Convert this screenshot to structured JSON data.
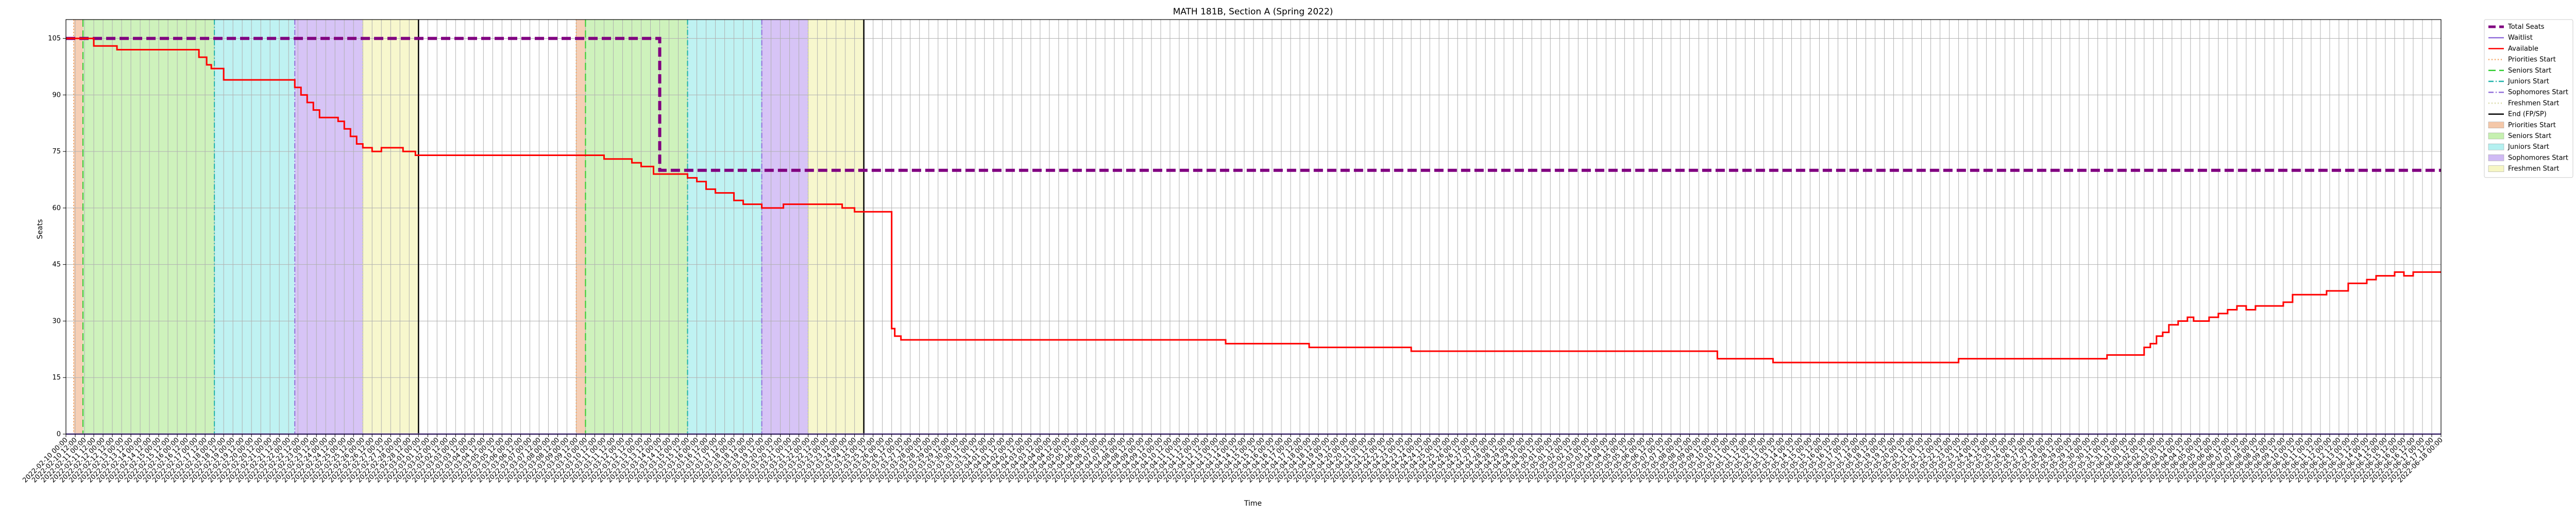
{
  "chart_data": {
    "type": "line",
    "title": "MATH 181B, Section A (Spring 2022)",
    "xlabel": "Time",
    "ylabel": "Seats",
    "ylim": [
      0,
      110
    ],
    "yticks": [
      0,
      15,
      30,
      45,
      60,
      75,
      90,
      105
    ],
    "x_start": "2022-02-10 00:00",
    "x_end": "2022-06-18 00:00",
    "xtick_step_hours": 12,
    "grid": true,
    "legend_position": "outside-right-top",
    "series": [
      {
        "name": "Total Seats",
        "color": "#800080",
        "style": "dashed",
        "points": [
          [
            "2022-02-10 00:00",
            105
          ],
          [
            "2022-03-14 00:00",
            105
          ],
          [
            "2022-03-14 00:00",
            70
          ],
          [
            "2022-06-18 00:00",
            70
          ]
        ]
      },
      {
        "name": "Waitlist",
        "color": "#9370db",
        "style": "solid",
        "points": [
          [
            "2022-02-10 00:00",
            0
          ],
          [
            "2022-06-18 00:00",
            0
          ]
        ]
      },
      {
        "name": "Available",
        "color": "#ff0000",
        "style": "step",
        "points": [
          [
            "2022-02-10 00:00",
            105
          ],
          [
            "2022-02-11 12:00",
            103
          ],
          [
            "2022-02-12 18:00",
            102
          ],
          [
            "2022-02-16 00:00",
            102
          ],
          [
            "2022-02-17 04:00",
            100
          ],
          [
            "2022-02-17 14:00",
            98
          ],
          [
            "2022-02-17 20:00",
            97
          ],
          [
            "2022-02-18 12:00",
            94
          ],
          [
            "2022-02-21 20:00",
            94
          ],
          [
            "2022-02-22 08:00",
            92
          ],
          [
            "2022-02-22 16:00",
            90
          ],
          [
            "2022-02-23 00:00",
            88
          ],
          [
            "2022-02-23 08:00",
            86
          ],
          [
            "2022-02-23 16:00",
            84
          ],
          [
            "2022-02-24 16:00",
            83
          ],
          [
            "2022-02-25 00:00",
            81
          ],
          [
            "2022-02-25 08:00",
            79
          ],
          [
            "2022-02-25 16:00",
            77
          ],
          [
            "2022-02-26 00:00",
            76
          ],
          [
            "2022-02-26 12:00",
            75
          ],
          [
            "2022-02-27 00:00",
            76
          ],
          [
            "2022-02-28 04:00",
            75
          ],
          [
            "2022-02-28 20:00",
            74
          ],
          [
            "2022-03-01 12:00",
            74
          ],
          [
            "2022-03-10 04:00",
            74
          ],
          [
            "2022-03-11 00:00",
            73
          ],
          [
            "2022-03-11 20:00",
            73
          ],
          [
            "2022-03-12 12:00",
            72
          ],
          [
            "2022-03-13 00:00",
            71
          ],
          [
            "2022-03-13 16:00",
            69
          ],
          [
            "2022-03-14 00:00",
            69
          ],
          [
            "2022-03-15 12:00",
            68
          ],
          [
            "2022-03-16 00:00",
            67
          ],
          [
            "2022-03-16 12:00",
            65
          ],
          [
            "2022-03-17 00:00",
            64
          ],
          [
            "2022-03-18 00:00",
            62
          ],
          [
            "2022-03-18 12:00",
            61
          ],
          [
            "2022-03-19 12:00",
            60
          ],
          [
            "2022-03-20 16:00",
            61
          ],
          [
            "2022-03-23 20:00",
            60
          ],
          [
            "2022-03-24 12:00",
            59
          ],
          [
            "2022-03-26 00:00",
            59
          ],
          [
            "2022-03-26 12:00",
            28
          ],
          [
            "2022-03-26 16:00",
            26
          ],
          [
            "2022-03-27 00:00",
            25
          ],
          [
            "2022-04-13 12:00",
            24
          ],
          [
            "2022-04-18 00:00",
            23
          ],
          [
            "2022-04-23 12:00",
            22
          ],
          [
            "2022-05-10 00:00",
            20
          ],
          [
            "2022-05-13 00:00",
            19
          ],
          [
            "2022-05-23 00:00",
            20
          ],
          [
            "2022-05-31 00:00",
            21
          ],
          [
            "2022-06-02 00:00",
            23
          ],
          [
            "2022-06-02 08:00",
            24
          ],
          [
            "2022-06-02 16:00",
            26
          ],
          [
            "2022-06-03 00:00",
            27
          ],
          [
            "2022-06-03 08:00",
            29
          ],
          [
            "2022-06-03 20:00",
            30
          ],
          [
            "2022-06-04 08:00",
            31
          ],
          [
            "2022-06-04 16:00",
            30
          ],
          [
            "2022-06-05 00:00",
            30
          ],
          [
            "2022-06-05 12:00",
            31
          ],
          [
            "2022-06-06 00:00",
            32
          ],
          [
            "2022-06-06 12:00",
            33
          ],
          [
            "2022-06-07 00:00",
            34
          ],
          [
            "2022-06-07 12:00",
            33
          ],
          [
            "2022-06-08 00:00",
            34
          ],
          [
            "2022-06-09 12:00",
            35
          ],
          [
            "2022-06-10 00:00",
            37
          ],
          [
            "2022-06-11 20:00",
            38
          ],
          [
            "2022-06-13 00:00",
            40
          ],
          [
            "2022-06-14 00:00",
            41
          ],
          [
            "2022-06-14 12:00",
            42
          ],
          [
            "2022-06-15 12:00",
            43
          ],
          [
            "2022-06-16 00:00",
            42
          ],
          [
            "2022-06-16 12:00",
            43
          ],
          [
            "2022-06-18 00:00",
            43
          ]
        ]
      }
    ],
    "vlines": [
      {
        "name": "Priorities Start",
        "color": "#f4a460",
        "style": "dotted",
        "x": "2022-02-10 10:00"
      },
      {
        "name": "Seniors Start",
        "color": "#32cd32",
        "style": "dashed",
        "x": "2022-02-10 22:00"
      },
      {
        "name": "Juniors Start",
        "color": "#20b2aa",
        "style": "dashdot",
        "x": "2022-02-18 00:00"
      },
      {
        "name": "Sophomores Start",
        "color": "#9370db",
        "style": "dashdot",
        "x": "2022-02-22 08:00"
      },
      {
        "name": "Freshmen Start",
        "color": "#d8d8a0",
        "style": "dotted",
        "x": "2022-02-26 00:00"
      },
      {
        "name": "End (FP/SP)",
        "color": "#000000",
        "style": "solid",
        "x": "2022-03-01 00:00"
      },
      {
        "name": "Priorities Start",
        "color": "#f4a460",
        "style": "dotted",
        "x": "2022-03-09 12:00"
      },
      {
        "name": "Seniors Start",
        "color": "#32cd32",
        "style": "dashed",
        "x": "2022-03-10 00:00"
      },
      {
        "name": "Juniors Start",
        "color": "#20b2aa",
        "style": "dashdot",
        "x": "2022-03-15 12:00"
      },
      {
        "name": "Sophomores Start",
        "color": "#9370db",
        "style": "dashdot",
        "x": "2022-03-19 12:00"
      },
      {
        "name": "Freshmen Start",
        "color": "#d8d8a0",
        "style": "dotted",
        "x": "2022-03-22 00:00"
      },
      {
        "name": "End (FP/SP)",
        "color": "#000000",
        "style": "solid",
        "x": "2022-03-25 00:00"
      }
    ],
    "spans": [
      {
        "name": "Priorities Start",
        "color": "#f4c7a8",
        "start": "2022-02-10 10:00",
        "end": "2022-02-10 22:00"
      },
      {
        "name": "Seniors Start",
        "color": "#c6f0b0",
        "start": "2022-02-10 22:00",
        "end": "2022-02-18 00:00"
      },
      {
        "name": "Juniors Start",
        "color": "#b4f0f0",
        "start": "2022-02-18 00:00",
        "end": "2022-02-22 08:00"
      },
      {
        "name": "Sophomores Start",
        "color": "#d0baf4",
        "start": "2022-02-22 08:00",
        "end": "2022-02-26 00:00"
      },
      {
        "name": "Freshmen Start",
        "color": "#f6f6c4",
        "start": "2022-02-26 00:00",
        "end": "2022-03-01 00:00"
      },
      {
        "name": "Priorities Start",
        "color": "#f4c7a8",
        "start": "2022-03-09 12:00",
        "end": "2022-03-10 00:00"
      },
      {
        "name": "Seniors Start",
        "color": "#c6f0b0",
        "start": "2022-03-10 00:00",
        "end": "2022-03-15 12:00"
      },
      {
        "name": "Juniors Start",
        "color": "#b4f0f0",
        "start": "2022-03-15 12:00",
        "end": "2022-03-19 12:00"
      },
      {
        "name": "Sophomores Start",
        "color": "#d0baf4",
        "start": "2022-03-19 12:00",
        "end": "2022-03-22 00:00"
      },
      {
        "name": "Freshmen Start",
        "color": "#f6f6c4",
        "start": "2022-03-22 00:00",
        "end": "2022-03-25 00:00"
      }
    ],
    "legend": [
      {
        "label": "Total Seats",
        "kind": "line",
        "color": "#800080",
        "style": "dashed"
      },
      {
        "label": "Waitlist",
        "kind": "line",
        "color": "#9370db",
        "style": "solid"
      },
      {
        "label": "Available",
        "kind": "line",
        "color": "#ff0000",
        "style": "solid"
      },
      {
        "label": "Priorities Start",
        "kind": "line",
        "color": "#f4a460",
        "style": "dotted"
      },
      {
        "label": "Seniors Start",
        "kind": "line",
        "color": "#32cd32",
        "style": "dashed"
      },
      {
        "label": "Juniors Start",
        "kind": "line",
        "color": "#20b2aa",
        "style": "dashdot"
      },
      {
        "label": "Sophomores Start",
        "kind": "line",
        "color": "#9370db",
        "style": "dashdot"
      },
      {
        "label": "Freshmen Start",
        "kind": "line",
        "color": "#d8d8a0",
        "style": "dotted"
      },
      {
        "label": "End (FP/SP)",
        "kind": "line",
        "color": "#000000",
        "style": "solid"
      },
      {
        "label": "Priorities Start",
        "kind": "patch",
        "color": "#f4c7a8"
      },
      {
        "label": "Seniors Start",
        "kind": "patch",
        "color": "#c6f0b0"
      },
      {
        "label": "Juniors Start",
        "kind": "patch",
        "color": "#b4f0f0"
      },
      {
        "label": "Sophomores Start",
        "kind": "patch",
        "color": "#d0baf4"
      },
      {
        "label": "Freshmen Start",
        "kind": "patch",
        "color": "#f6f6c4"
      }
    ]
  }
}
